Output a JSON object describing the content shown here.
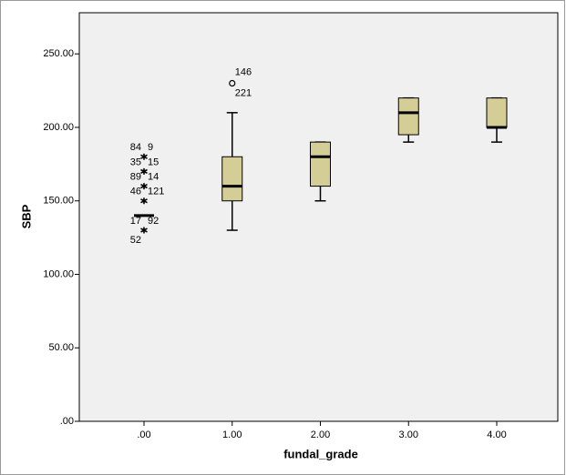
{
  "chart_data": {
    "type": "boxplot",
    "x_label": "fundal_grade",
    "y_label": "SBP",
    "categories": [
      ".00",
      "1.00",
      "2.00",
      "3.00",
      "4.00"
    ],
    "box_color": "#d4cd96",
    "boxes": [
      {
        "min": 140,
        "q1": 140,
        "median": 140,
        "q3": 140,
        "max": 140
      },
      {
        "min": 130,
        "q1": 150,
        "median": 160,
        "q3": 180,
        "max": 210
      },
      {
        "min": 150,
        "q1": 160,
        "median": 180,
        "q3": 190,
        "max": 190
      },
      {
        "min": 190,
        "q1": 195,
        "median": 210,
        "q3": 220,
        "max": 220
      },
      {
        "min": 190,
        "q1": 200,
        "median": 200,
        "q3": 220,
        "max": 220
      }
    ],
    "outliers": [
      [
        {
          "value": 180,
          "marker": "star",
          "labels": [
            "84",
            "9"
          ]
        },
        {
          "value": 170,
          "marker": "star",
          "labels": [
            "35",
            "15"
          ]
        },
        {
          "value": 160,
          "marker": "star",
          "labels": [
            "89",
            "14"
          ]
        },
        {
          "value": 150,
          "marker": "star",
          "labels": [
            "46",
            "121"
          ]
        },
        {
          "value": 130,
          "marker": "star",
          "labels": [
            "17",
            "92",
            "52"
          ]
        }
      ],
      [
        {
          "value": 230,
          "marker": "circle",
          "labels": [
            "146",
            "221"
          ]
        }
      ],
      [],
      [],
      []
    ],
    "ylim": [
      0,
      278
    ],
    "yticks": [
      {
        "value": 0,
        "label": ".00"
      },
      {
        "value": 50,
        "label": "50.00"
      },
      {
        "value": 100,
        "label": "100.00"
      },
      {
        "value": 150,
        "label": "150.00"
      },
      {
        "value": 200,
        "label": "200.00"
      },
      {
        "value": 250,
        "label": "250.00"
      }
    ]
  }
}
